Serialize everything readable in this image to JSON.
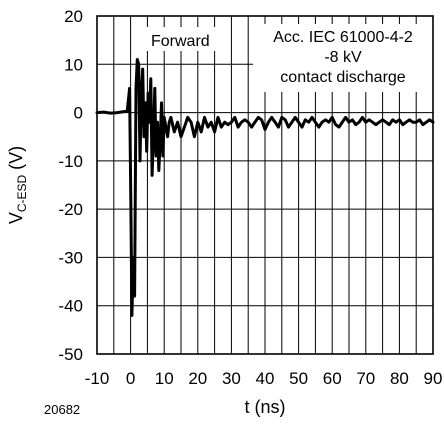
{
  "chart_data": {
    "type": "line",
    "title": "",
    "xlabel": "t (ns)",
    "ylabel_main": "V",
    "ylabel_sub": "C-ESD",
    "ylabel_unit": " (V)",
    "xlim": [
      -10,
      90
    ],
    "ylim": [
      -50,
      20
    ],
    "x_ticks": [
      -10,
      0,
      10,
      20,
      30,
      40,
      50,
      60,
      70,
      80,
      90
    ],
    "y_ticks": [
      -50,
      -40,
      -30,
      -20,
      -10,
      0,
      10,
      20
    ],
    "x_minor_step": 5,
    "grid": true,
    "annotations": {
      "mode": "Forward",
      "standard_line1": "Acc. IEC 61000-4-2",
      "standard_line2": "-8 kV",
      "standard_line3": "contact discharge"
    },
    "figure_number": "20682",
    "series": [
      {
        "x": [
          -10,
          -8,
          -6,
          -4,
          -2,
          -1,
          -0.3,
          0.1,
          0.4,
          0.8,
          1.2,
          1.6,
          2.0,
          2.4,
          2.8,
          3.2,
          3.6,
          4.0,
          4.4,
          4.8,
          5.2,
          5.6,
          6.0,
          6.4,
          6.8,
          7.2,
          7.6,
          8.0,
          8.4,
          8.8,
          9.2,
          9.6,
          10.0,
          10.5,
          11.0,
          11.5,
          12,
          13,
          14,
          15,
          16,
          17,
          18,
          19,
          20,
          21,
          22,
          23,
          24,
          25,
          26,
          27,
          28,
          29,
          30,
          31,
          32,
          33,
          34,
          35,
          36,
          37,
          38,
          39,
          40,
          41,
          42,
          43,
          44,
          45,
          46,
          47,
          48,
          49,
          50,
          51,
          52,
          53,
          54,
          55,
          56,
          57,
          58,
          59,
          60,
          61,
          62,
          63,
          64,
          65,
          66,
          67,
          68,
          69,
          70,
          71,
          72,
          73,
          74,
          75,
          76,
          77,
          78,
          79,
          80,
          81,
          82,
          83,
          84,
          85,
          86,
          87,
          88,
          89,
          90
        ],
        "values": [
          0,
          0.1,
          -0.1,
          0,
          0.2,
          0.3,
          5,
          -20,
          -42,
          -30,
          -38,
          5,
          11,
          10,
          -10,
          4,
          9,
          -5,
          2,
          -8,
          4,
          -2,
          7,
          -13,
          -5,
          5,
          -9,
          -2,
          -12,
          -6,
          2,
          -9,
          -1,
          -3,
          -5,
          -2,
          -1,
          -4,
          -2,
          -5,
          -3,
          -1,
          -2,
          -5,
          -2,
          -4,
          -1,
          -3,
          -2,
          -4,
          -1,
          -3,
          -2,
          -2.5,
          -2,
          -1,
          -3,
          -2,
          -1.5,
          -2,
          -3,
          -2,
          -1,
          -1.5,
          -3.5,
          -2,
          -1,
          -2,
          -3,
          -1,
          -1.5,
          -3,
          -2,
          -1,
          -2,
          -3,
          -1.5,
          -2,
          -1,
          -2,
          -3,
          -2,
          -1.5,
          -2,
          -1,
          -2.5,
          -3,
          -2,
          -1,
          -2,
          -1.5,
          -2.5,
          -2,
          -1,
          -2,
          -1.5,
          -2,
          -2.5,
          -2,
          -1.5,
          -2,
          -2.5,
          -1.5,
          -2,
          -1.5,
          -2.5,
          -2,
          -1.5,
          -2,
          -2,
          -1.5,
          -2.5,
          -2,
          -1.5,
          -2
        ]
      }
    ]
  }
}
